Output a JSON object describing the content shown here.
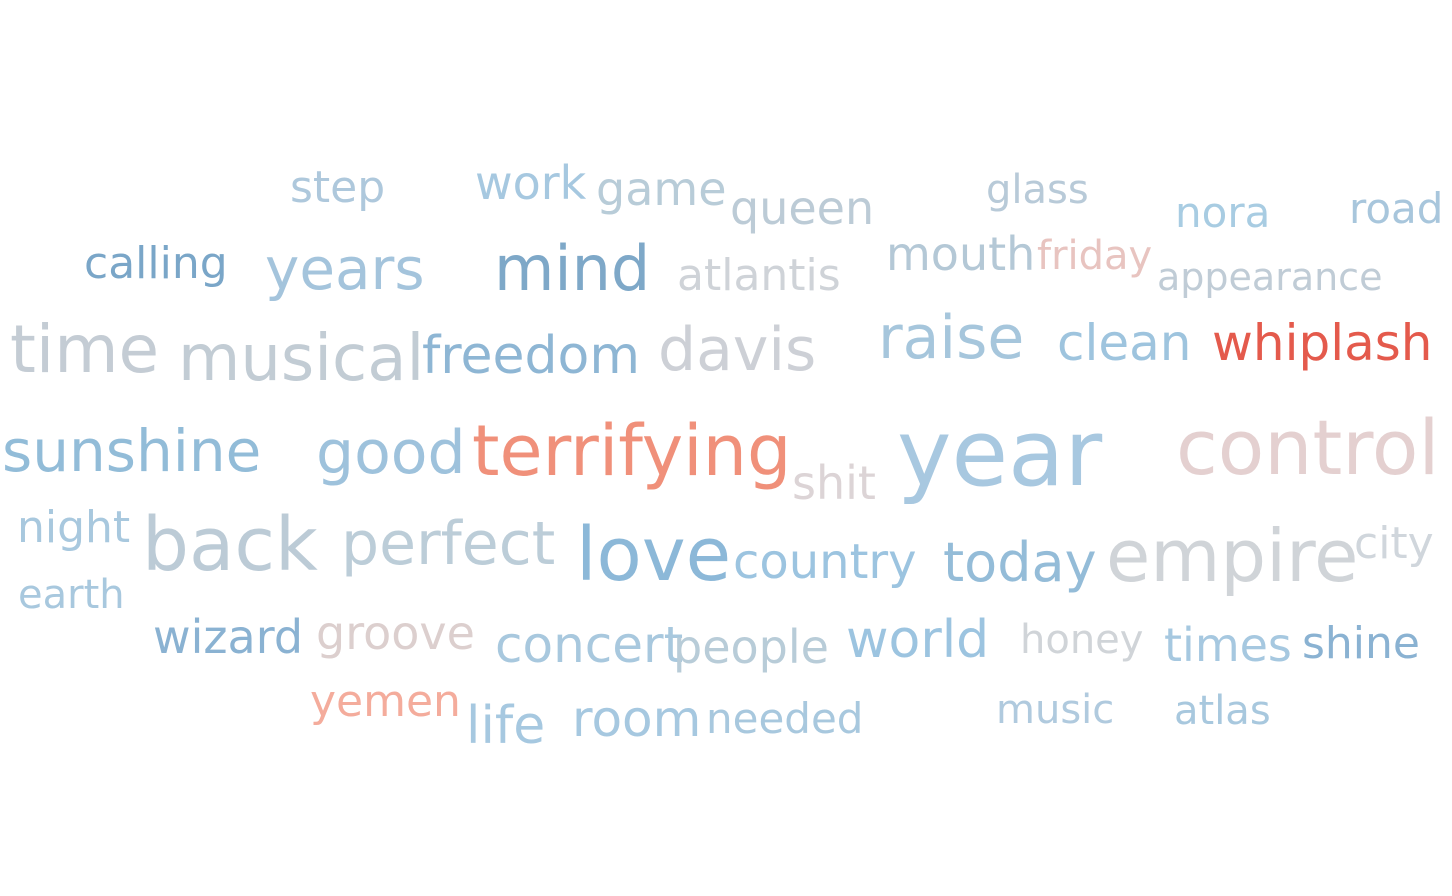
{
  "words": [
    {
      "text": "step",
      "color": "#aec8dc"
    },
    {
      "text": "work",
      "color": "#a6c8e0"
    },
    {
      "text": "game",
      "color": "#b8ccd8"
    },
    {
      "text": "queen",
      "color": "#bccbd6"
    },
    {
      "text": "glass",
      "color": "#b8cad8"
    },
    {
      "text": "nora",
      "color": "#a8cce2"
    },
    {
      "text": "road",
      "color": "#a8c6dc"
    },
    {
      "text": "calling",
      "color": "#7aa6c8"
    },
    {
      "text": "years",
      "color": "#a4c4dc"
    },
    {
      "text": "mind",
      "color": "#7ea8c8"
    },
    {
      "text": "atlantis",
      "color": "#cfd3d8"
    },
    {
      "text": "mouth",
      "color": "#b4c8d6"
    },
    {
      "text": "friday",
      "color": "#e8c4c0"
    },
    {
      "text": "appearance",
      "color": "#c0ccd6"
    },
    {
      "text": "time",
      "color": "#c4ccd4"
    },
    {
      "text": "musical",
      "color": "#c2ccd4"
    },
    {
      "text": "freedom",
      "color": "#8eb6d4"
    },
    {
      "text": "davis",
      "color": "#cdd0d6"
    },
    {
      "text": "raise",
      "color": "#a6c6dc"
    },
    {
      "text": "clean",
      "color": "#9ec4de"
    },
    {
      "text": "whiplash",
      "color": "#e45a4c"
    },
    {
      "text": "sunshine",
      "color": "#92bcd8"
    },
    {
      "text": "good",
      "color": "#9ec2dc"
    },
    {
      "text": "terrifying",
      "color": "#f0907a"
    },
    {
      "text": "shit",
      "color": "#dcd4d6"
    },
    {
      "text": "year",
      "color": "#a8c8e0"
    },
    {
      "text": "control",
      "color": "#e4d0d0"
    },
    {
      "text": "night",
      "color": "#a8c8de"
    },
    {
      "text": "back",
      "color": "#bccbd6"
    },
    {
      "text": "perfect",
      "color": "#bccdd8"
    },
    {
      "text": "love",
      "color": "#8cb8d8"
    },
    {
      "text": "country",
      "color": "#9cc4e0"
    },
    {
      "text": "today",
      "color": "#94bcd8"
    },
    {
      "text": "empire",
      "color": "#d0d4d8"
    },
    {
      "text": "city",
      "color": "#d0d6dc"
    },
    {
      "text": "earth",
      "color": "#a8c8de"
    },
    {
      "text": "wizard",
      "color": "#8ab2d2"
    },
    {
      "text": "groove",
      "color": "#dccfce"
    },
    {
      "text": "concert",
      "color": "#a8c8de"
    },
    {
      "text": "people",
      "color": "#b8ccd8"
    },
    {
      "text": "world",
      "color": "#9cc4e0"
    },
    {
      "text": "honey",
      "color": "#d0d4d8"
    },
    {
      "text": "times",
      "color": "#a6c8e0"
    },
    {
      "text": "shine",
      "color": "#8ab2d2"
    },
    {
      "text": "yemen",
      "color": "#f4ac9c"
    },
    {
      "text": "life",
      "color": "#a6c8e0"
    },
    {
      "text": "room",
      "color": "#a6c8e0"
    },
    {
      "text": "needed",
      "color": "#a8c8de"
    },
    {
      "text": "music",
      "color": "#b0cade"
    },
    {
      "text": "atlas",
      "color": "#a8c8de"
    }
  ]
}
